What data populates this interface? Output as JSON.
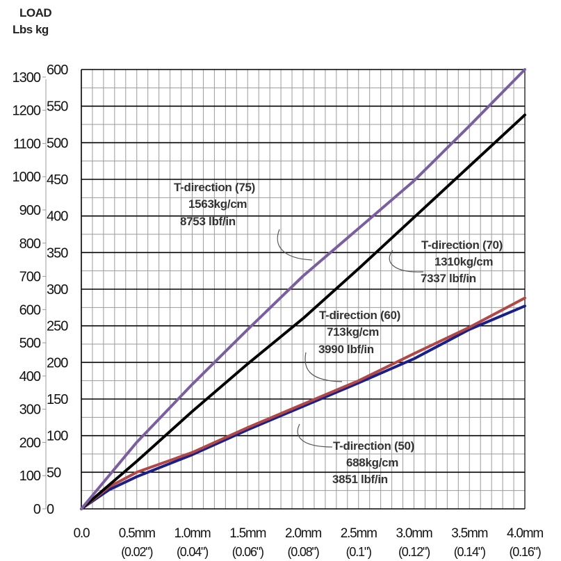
{
  "header": {
    "title": "LOAD",
    "units": "Lbs  kg"
  },
  "chart_data": {
    "type": "line",
    "ylabel": "LOAD",
    "y_left_unit": "Lbs",
    "y_right_unit": "kg",
    "xlim": [
      0,
      4.0
    ],
    "ylim_kg": [
      0,
      600
    ],
    "ylim_lbs": [
      0,
      1300
    ],
    "grid": true,
    "x_ticks": [
      {
        "label": "0.0",
        "sub": ""
      },
      {
        "label": "0.5mm",
        "sub": "(0.02\")"
      },
      {
        "label": "1.0mm",
        "sub": "(0.04\")"
      },
      {
        "label": "1.5mm",
        "sub": "(0.06\")"
      },
      {
        "label": "2.0mm",
        "sub": "(0.08\")"
      },
      {
        "label": "2.5mm",
        "sub": "(0.1\")"
      },
      {
        "label": "3.0mm",
        "sub": "(0.12\")"
      },
      {
        "label": "3.5mm",
        "sub": "(0.14\")"
      },
      {
        "label": "4.0mm",
        "sub": "(0.16\")"
      }
    ],
    "y_kg_ticks": [
      "0",
      "50",
      "100",
      "150",
      "200",
      "250",
      "300",
      "350",
      "400",
      "450",
      "500",
      "550",
      "600"
    ],
    "y_lbs_ticks": [
      "0",
      "100",
      "200",
      "300",
      "400",
      "500",
      "600",
      "700",
      "800",
      "900",
      "1000",
      "1100",
      "1200",
      "1300"
    ],
    "series": [
      {
        "name": "T-direction (75)",
        "color": "#7a5ea0",
        "x": [
          0,
          0.5,
          1.0,
          1.5,
          2.0,
          2.5,
          3.0,
          3.5,
          4.0
        ],
        "y": [
          0,
          91,
          170,
          245,
          318,
          383,
          448,
          523,
          600
        ]
      },
      {
        "name": "T-direction (70)",
        "color": "#000000",
        "x": [
          0,
          0.5,
          1.0,
          1.5,
          2.0,
          2.5,
          3.0,
          3.5,
          4.0
        ],
        "y": [
          0,
          65,
          133,
          198,
          260,
          328,
          398,
          468,
          538
        ]
      },
      {
        "name": "T-direction (60)",
        "color": "#b04848",
        "x": [
          0,
          0.25,
          0.5,
          1.0,
          1.5,
          2.0,
          2.5,
          3.0,
          3.5,
          4.0
        ],
        "y": [
          0,
          30,
          50,
          77,
          111,
          143,
          175,
          212,
          248,
          288
        ]
      },
      {
        "name": "T-direction (50)",
        "color": "#1a1f8a",
        "x": [
          0,
          0.25,
          0.5,
          1.0,
          1.5,
          2.0,
          2.5,
          3.0,
          3.5,
          4.0
        ],
        "y": [
          0,
          26,
          44,
          74,
          108,
          140,
          172,
          205,
          245,
          277
        ]
      }
    ],
    "annotations": [
      {
        "series": "T-direction (75)",
        "lines": [
          "T-direction (75)",
          "1563kg/cm",
          "8753 lbf/in"
        ]
      },
      {
        "series": "T-direction (70)",
        "lines": [
          "T-direction (70)",
          "1310kg/cm",
          "7337 lbf/in"
        ]
      },
      {
        "series": "T-direction (60)",
        "lines": [
          "T-direction (60)",
          "713kg/cm",
          "3990 lbf/in"
        ]
      },
      {
        "series": "T-direction (50)",
        "lines": [
          "T-direction (50)",
          "688kg/cm",
          "3851 lbf/in"
        ]
      }
    ]
  }
}
